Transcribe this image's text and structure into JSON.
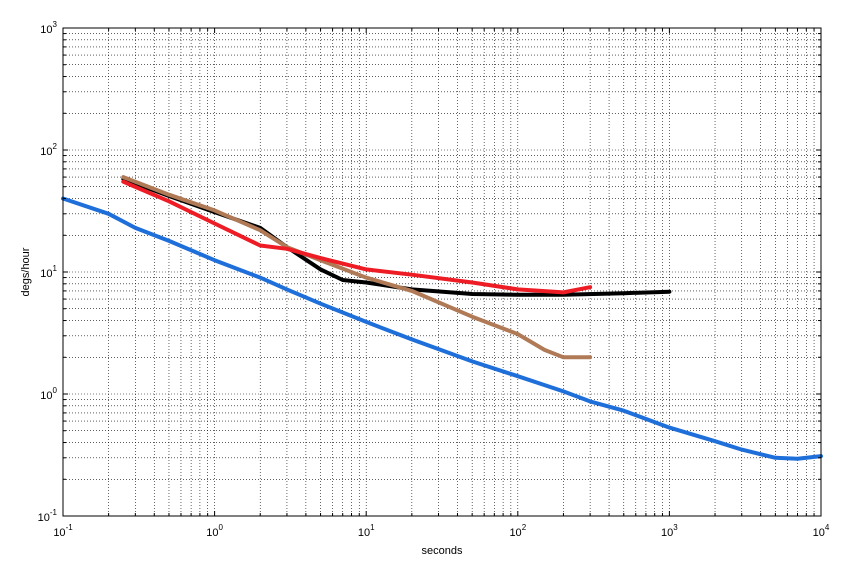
{
  "chart_data": {
    "type": "line",
    "title": "",
    "xlabel": "seconds",
    "ylabel": "degs/hour",
    "x_scale": "log",
    "y_scale": "log",
    "xlim": [
      0.1,
      10000
    ],
    "ylim": [
      0.1,
      1000
    ],
    "grid": true,
    "x_ticks": [
      {
        "base": "10",
        "exp": "-1",
        "value": 0.1
      },
      {
        "base": "10",
        "exp": "0",
        "value": 1
      },
      {
        "base": "10",
        "exp": "1",
        "value": 10
      },
      {
        "base": "10",
        "exp": "2",
        "value": 100
      },
      {
        "base": "10",
        "exp": "3",
        "value": 1000
      },
      {
        "base": "10",
        "exp": "4",
        "value": 10000
      }
    ],
    "y_ticks": [
      {
        "base": "10",
        "exp": "-1",
        "value": 0.1
      },
      {
        "base": "10",
        "exp": "0",
        "value": 1
      },
      {
        "base": "10",
        "exp": "1",
        "value": 10
      },
      {
        "base": "10",
        "exp": "2",
        "value": 100
      },
      {
        "base": "10",
        "exp": "3",
        "value": 1000
      }
    ],
    "series": [
      {
        "color": "#1e6fd9",
        "points": [
          [
            0.1,
            40
          ],
          [
            0.2,
            30
          ],
          [
            0.3,
            23
          ],
          [
            0.5,
            18
          ],
          [
            1,
            12.5
          ],
          [
            2,
            9
          ],
          [
            3,
            7.2
          ],
          [
            5,
            5.5
          ],
          [
            10,
            3.9
          ],
          [
            20,
            2.8
          ],
          [
            50,
            1.85
          ],
          [
            100,
            1.4
          ],
          [
            200,
            1.05
          ],
          [
            300,
            0.87
          ],
          [
            500,
            0.73
          ],
          [
            1000,
            0.53
          ],
          [
            2000,
            0.41
          ],
          [
            3000,
            0.35
          ],
          [
            5000,
            0.3
          ],
          [
            7000,
            0.295
          ],
          [
            10000,
            0.31
          ]
        ]
      },
      {
        "color": "#000000",
        "points": [
          [
            0.25,
            58
          ],
          [
            0.5,
            42
          ],
          [
            1,
            31
          ],
          [
            2,
            23
          ],
          [
            3,
            16
          ],
          [
            5,
            10.5
          ],
          [
            7,
            8.6
          ],
          [
            10,
            8.2
          ],
          [
            20,
            7.2
          ],
          [
            50,
            6.6
          ],
          [
            100,
            6.5
          ],
          [
            200,
            6.5
          ],
          [
            500,
            6.7
          ],
          [
            1000,
            6.9
          ]
        ]
      },
      {
        "color": "#b07a56",
        "points": [
          [
            0.25,
            60
          ],
          [
            0.5,
            43
          ],
          [
            1,
            32
          ],
          [
            2,
            22
          ],
          [
            3,
            16
          ],
          [
            5,
            12.5
          ],
          [
            10,
            9
          ],
          [
            20,
            7
          ],
          [
            50,
            4.3
          ],
          [
            100,
            3.1
          ],
          [
            150,
            2.3
          ],
          [
            200,
            2.0
          ],
          [
            300,
            2.0
          ]
        ]
      },
      {
        "color": "#ee1c24",
        "points": [
          [
            0.25,
            55
          ],
          [
            0.5,
            38
          ],
          [
            1,
            25
          ],
          [
            2,
            16.5
          ],
          [
            3,
            15.5
          ],
          [
            5,
            13
          ],
          [
            10,
            10.5
          ],
          [
            20,
            9.5
          ],
          [
            50,
            8.2
          ],
          [
            100,
            7.2
          ],
          [
            200,
            6.8
          ],
          [
            300,
            7.5
          ]
        ]
      }
    ]
  }
}
